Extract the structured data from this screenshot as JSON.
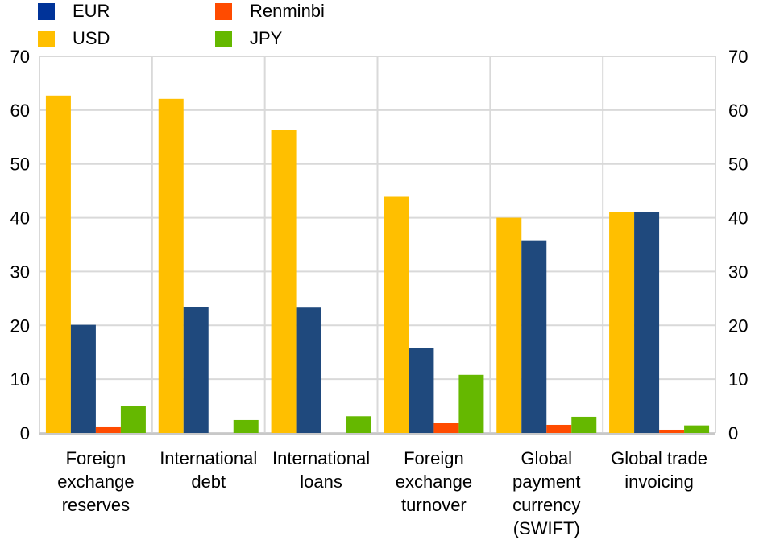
{
  "chart_data": {
    "type": "bar",
    "categories": [
      "Foreign\nexchange\nreserves",
      "International\ndebt",
      "International\nloans",
      "Foreign\nexchange\nturnover",
      "Global\npayment\ncurrency\n(SWIFT)",
      "Global trade\ninvoicing"
    ],
    "series": [
      {
        "name": "USD",
        "color": "#ffbf00",
        "values": [
          62.7,
          62.1,
          56.3,
          43.9,
          40.0,
          41.0
        ]
      },
      {
        "name": "EUR",
        "color": "#1f497d",
        "legend_color": "#003399",
        "values": [
          20.1,
          23.4,
          23.3,
          15.8,
          35.8,
          41.0
        ]
      },
      {
        "name": "Renminbi",
        "color": "#ff4b00",
        "values": [
          1.2,
          0,
          0,
          1.9,
          1.5,
          0.6
        ]
      },
      {
        "name": "JPY",
        "color": "#65b800",
        "values": [
          5.0,
          2.4,
          3.1,
          10.8,
          3.0,
          1.4
        ]
      }
    ],
    "legend": [
      "EUR",
      "Renminbi",
      "USD",
      "JPY"
    ],
    "legend_placement": "top-left",
    "ylim": [
      0,
      70
    ],
    "yticks": [
      "0",
      "10",
      "20",
      "30",
      "40",
      "50",
      "60",
      "70"
    ],
    "dual_y_axis": true,
    "grid": true,
    "title": "",
    "xlabel": "",
    "ylabel": ""
  }
}
